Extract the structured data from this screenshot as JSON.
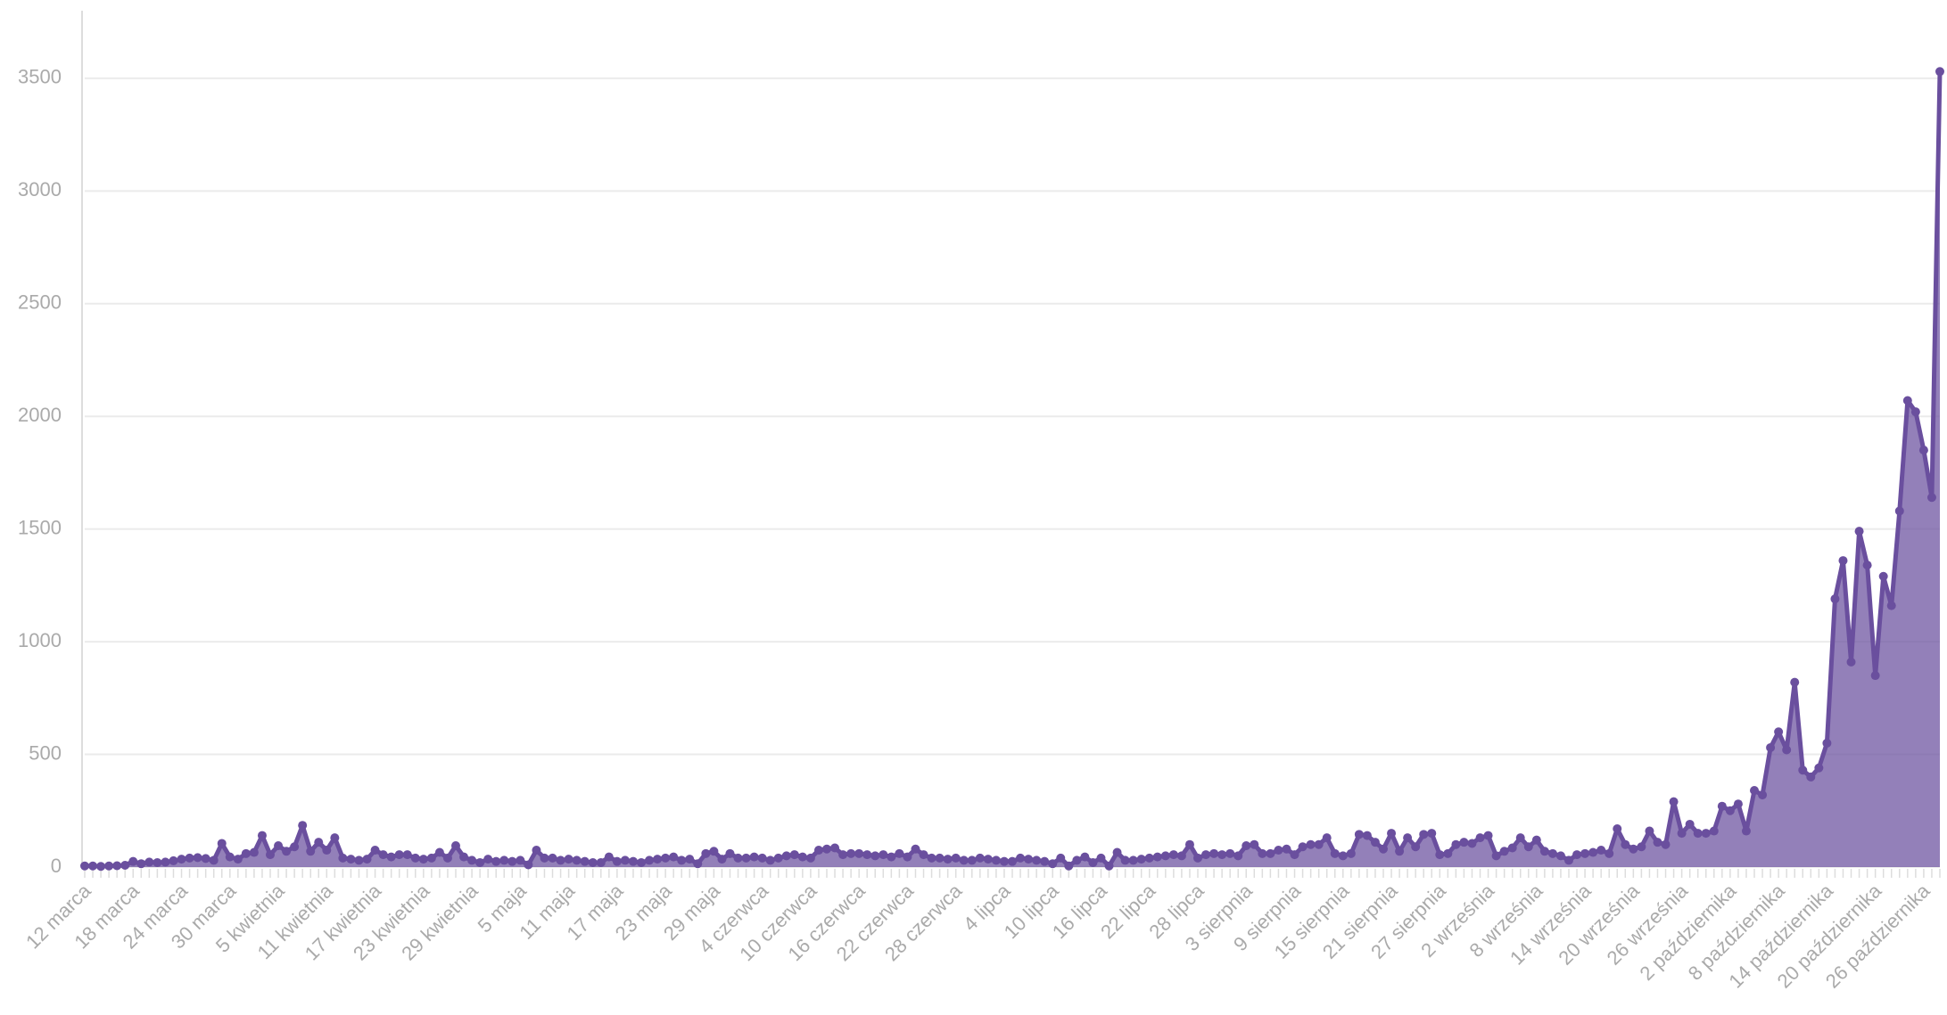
{
  "chart_data": {
    "type": "area",
    "categories": [
      "12 marca",
      null,
      null,
      null,
      null,
      null,
      "18 marca",
      null,
      null,
      null,
      null,
      null,
      "24 marca",
      null,
      null,
      null,
      null,
      null,
      "30 marca",
      null,
      null,
      null,
      null,
      null,
      "5 kwietnia",
      null,
      null,
      null,
      null,
      null,
      "11 kwietnia",
      null,
      null,
      null,
      null,
      null,
      "17 kwietnia",
      null,
      null,
      null,
      null,
      null,
      "23 kwietnia",
      null,
      null,
      null,
      null,
      null,
      "29 kwietnia",
      null,
      null,
      null,
      null,
      null,
      "5 maja",
      null,
      null,
      null,
      null,
      null,
      "11 maja",
      null,
      null,
      null,
      null,
      null,
      "17 maja",
      null,
      null,
      null,
      null,
      null,
      "23 maja",
      null,
      null,
      null,
      null,
      null,
      "29 maja",
      null,
      null,
      null,
      null,
      null,
      "4 czerwca",
      null,
      null,
      null,
      null,
      null,
      "10 czerwca",
      null,
      null,
      null,
      null,
      null,
      "16 czerwca",
      null,
      null,
      null,
      null,
      null,
      "22 czerwca",
      null,
      null,
      null,
      null,
      null,
      "28 czerwca",
      null,
      null,
      null,
      null,
      null,
      "4 lipca",
      null,
      null,
      null,
      null,
      null,
      "10 lipca",
      null,
      null,
      null,
      null,
      null,
      "16 lipca",
      null,
      null,
      null,
      null,
      null,
      "22 lipca",
      null,
      null,
      null,
      null,
      null,
      "28 lipca",
      null,
      null,
      null,
      null,
      null,
      "3 sierpnia",
      null,
      null,
      null,
      null,
      null,
      "9 sierpnia",
      null,
      null,
      null,
      null,
      null,
      "15 sierpnia",
      null,
      null,
      null,
      null,
      null,
      "21 sierpnia",
      null,
      null,
      null,
      null,
      null,
      "27 sierpnia",
      null,
      null,
      null,
      null,
      null,
      "2 września",
      null,
      null,
      null,
      null,
      null,
      "8 września",
      null,
      null,
      null,
      null,
      null,
      "14 września",
      null,
      null,
      null,
      null,
      null,
      "20 września",
      null,
      null,
      null,
      null,
      null,
      "26 września",
      null,
      null,
      null,
      null,
      null,
      "2 października",
      null,
      null,
      null,
      null,
      null,
      "8 października",
      null,
      null,
      null,
      null,
      null,
      "14 października",
      null,
      null,
      null,
      null,
      null,
      "20 października",
      null,
      null,
      null,
      null,
      null,
      "26 października",
      null,
      null
    ],
    "values": [
      5,
      5,
      3,
      5,
      6,
      8,
      25,
      15,
      22,
      20,
      22,
      28,
      35,
      40,
      42,
      38,
      30,
      105,
      45,
      35,
      60,
      65,
      140,
      55,
      95,
      70,
      90,
      185,
      70,
      110,
      75,
      130,
      40,
      35,
      30,
      35,
      75,
      55,
      45,
      55,
      55,
      40,
      35,
      40,
      65,
      40,
      95,
      45,
      30,
      20,
      35,
      25,
      30,
      25,
      30,
      10,
      75,
      40,
      40,
      30,
      35,
      30,
      25,
      20,
      20,
      45,
      25,
      30,
      25,
      20,
      30,
      35,
      40,
      45,
      30,
      35,
      15,
      60,
      70,
      35,
      60,
      40,
      40,
      45,
      40,
      30,
      40,
      50,
      55,
      45,
      40,
      75,
      80,
      85,
      55,
      60,
      60,
      55,
      50,
      55,
      45,
      60,
      45,
      80,
      55,
      40,
      40,
      35,
      40,
      30,
      30,
      40,
      35,
      30,
      25,
      25,
      40,
      35,
      30,
      25,
      15,
      40,
      5,
      30,
      45,
      20,
      40,
      5,
      65,
      30,
      30,
      35,
      40,
      45,
      50,
      55,
      50,
      100,
      40,
      55,
      60,
      55,
      60,
      50,
      95,
      100,
      60,
      60,
      75,
      80,
      55,
      90,
      100,
      100,
      130,
      60,
      50,
      60,
      145,
      140,
      110,
      80,
      150,
      70,
      130,
      90,
      145,
      150,
      55,
      60,
      100,
      110,
      105,
      130,
      140,
      50,
      70,
      85,
      130,
      90,
      120,
      70,
      60,
      50,
      30,
      55,
      60,
      65,
      75,
      60,
      170,
      100,
      80,
      90,
      160,
      110,
      100,
      290,
      150,
      190,
      150,
      150,
      160,
      270,
      250,
      280,
      160,
      340,
      320,
      530,
      600,
      520,
      820,
      430,
      400,
      440,
      550,
      1190,
      1360,
      910,
      1490,
      1340,
      850,
      1290,
      1160,
      1580,
      2070,
      2020,
      1850,
      1640,
      3530
    ],
    "color": "#6a4f9e",
    "ylim": [
      0,
      3800
    ],
    "yticks": [
      0,
      500,
      1000,
      1500,
      2000,
      2500,
      3000,
      3500
    ],
    "grid": true
  }
}
